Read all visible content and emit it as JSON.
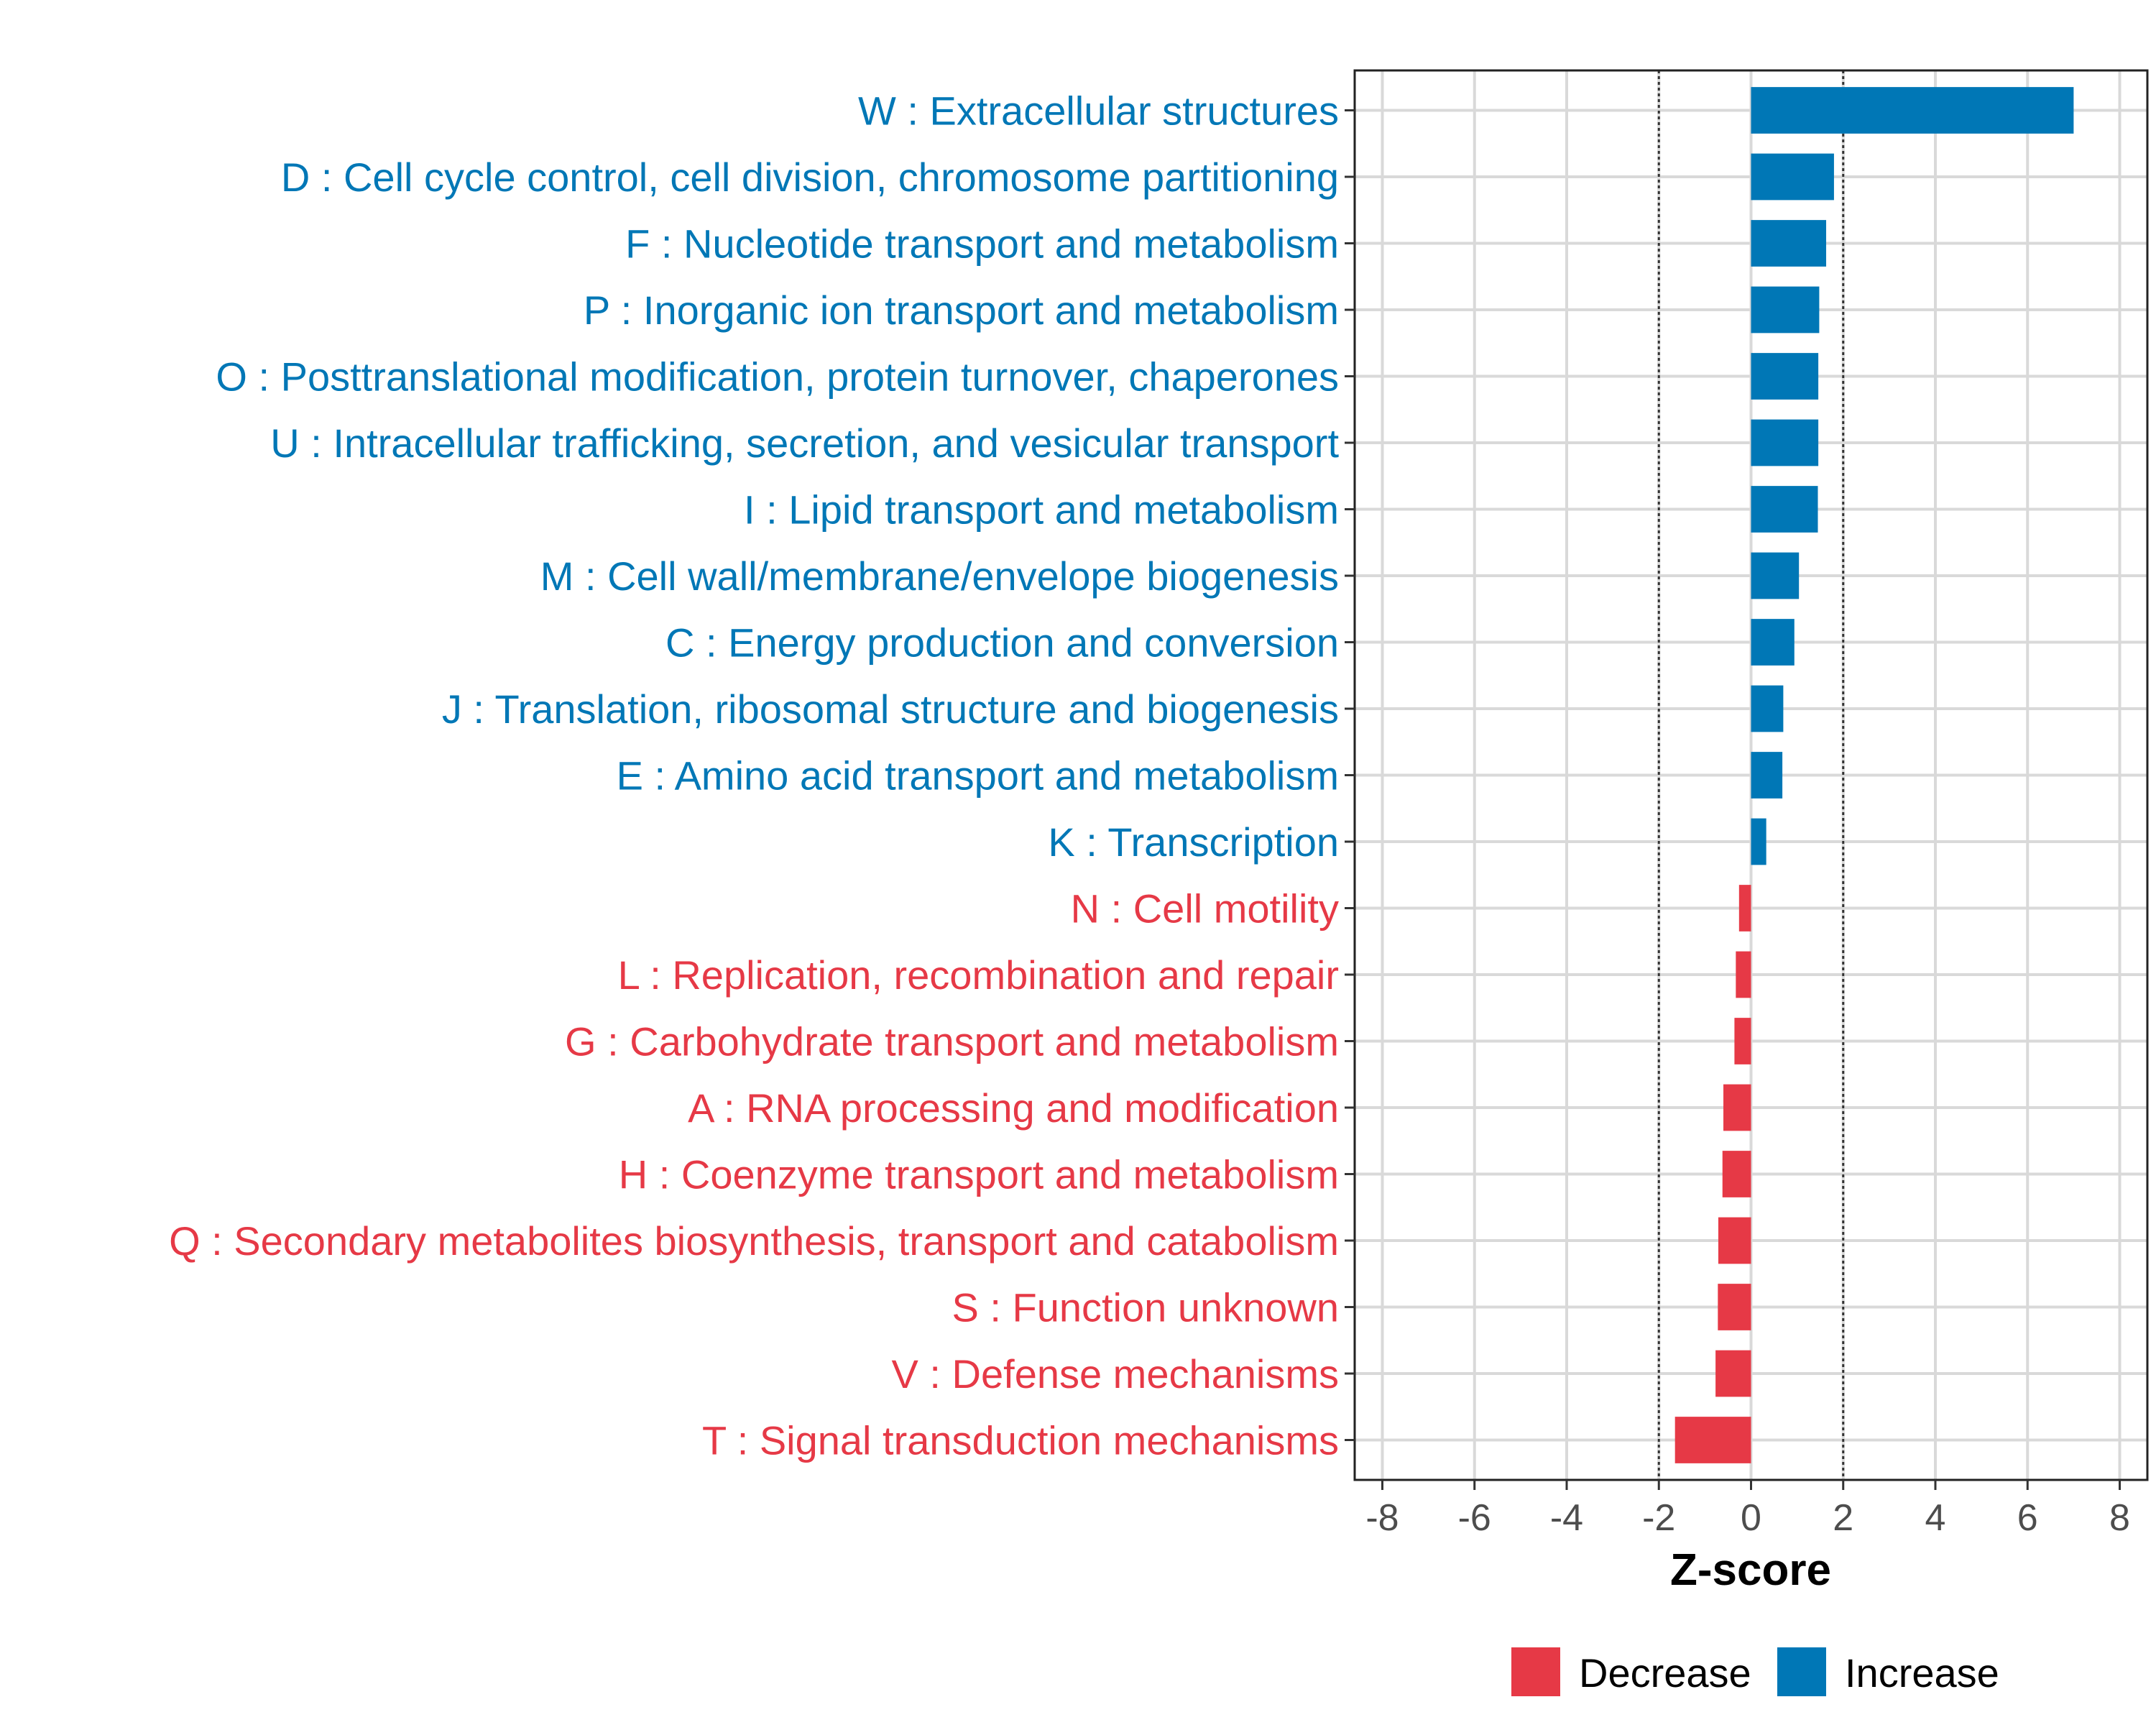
{
  "chart_data": {
    "type": "bar",
    "orientation": "horizontal",
    "categories": [
      "W : Extracellular structures",
      "D : Cell cycle control, cell division, chromosome partitioning",
      "F : Nucleotide transport and metabolism",
      "P : Inorganic ion transport and metabolism",
      "O : Posttranslational modification, protein turnover, chaperones",
      "U : Intracellular trafficking, secretion, and vesicular transport",
      "I : Lipid transport and metabolism",
      "M : Cell wall/membrane/envelope biogenesis",
      "C : Energy production and conversion",
      "J : Translation, ribosomal structure and biogenesis",
      "E : Amino acid transport and metabolism",
      "K : Transcription",
      "N : Cell motility",
      "L : Replication, recombination and repair",
      "G : Carbohydrate transport and metabolism",
      "A : RNA processing and modification",
      "H : Coenzyme transport and metabolism",
      "Q : Secondary metabolites biosynthesis, transport and catabolism",
      "S : Function unknown",
      "V : Defense mechanisms",
      "T : Signal transduction mechanisms"
    ],
    "values": [
      7.0,
      1.8,
      1.63,
      1.48,
      1.46,
      1.46,
      1.45,
      1.04,
      0.94,
      0.7,
      0.68,
      0.33,
      -0.26,
      -0.33,
      -0.36,
      -0.6,
      -0.62,
      -0.71,
      -0.72,
      -0.77,
      -1.65
    ],
    "groups": [
      "Increase",
      "Increase",
      "Increase",
      "Increase",
      "Increase",
      "Increase",
      "Increase",
      "Increase",
      "Increase",
      "Increase",
      "Increase",
      "Increase",
      "Decrease",
      "Decrease",
      "Decrease",
      "Decrease",
      "Decrease",
      "Decrease",
      "Decrease",
      "Decrease",
      "Decrease"
    ],
    "xlabel": "Z-score",
    "xlim": [
      -8.6,
      8.6
    ],
    "xticks": [
      -8,
      -6,
      -4,
      -2,
      0,
      2,
      4,
      6,
      8
    ],
    "xtick_labels": [
      "-8",
      "-6",
      "-4",
      "-2",
      "0",
      "2",
      "4",
      "6",
      "8"
    ],
    "reference_lines": [
      -2,
      2
    ],
    "grid": true,
    "legend": {
      "position": "bottom",
      "entries": [
        {
          "label": "Decrease",
          "color": "#E63946"
        },
        {
          "label": "Increase",
          "color": "#0077B6"
        }
      ]
    },
    "colors": {
      "Increase": "#0077B6",
      "Decrease": "#E63946"
    }
  }
}
